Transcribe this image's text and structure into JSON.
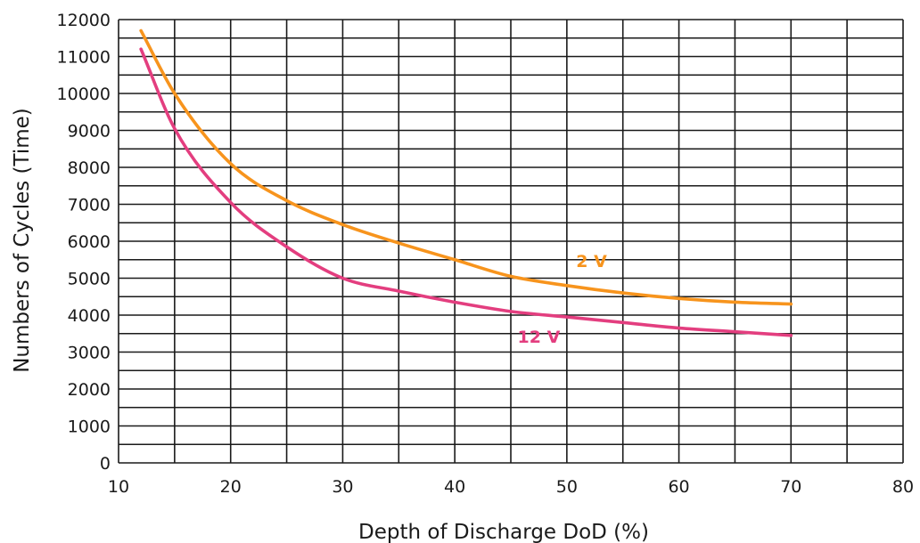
{
  "chart_data": {
    "type": "line",
    "title": "",
    "xlabel": "Depth of Discharge DoD (%)",
    "ylabel": "Numbers of Cycles (Time)",
    "xlim": [
      10,
      80
    ],
    "ylim": [
      0,
      12000
    ],
    "grid": true,
    "x_ticks": [
      10,
      20,
      30,
      40,
      50,
      60,
      70,
      80
    ],
    "y_ticks": [
      0,
      1000,
      2000,
      3000,
      4000,
      5000,
      6000,
      7000,
      8000,
      9000,
      10000,
      11000,
      12000
    ],
    "x_gridlines": [
      10,
      15,
      20,
      25,
      30,
      35,
      40,
      45,
      50,
      55,
      60,
      65,
      70,
      75,
      80
    ],
    "y_gridlines": [
      0,
      500,
      1000,
      1500,
      2000,
      2500,
      3000,
      3500,
      4000,
      4500,
      5000,
      5500,
      6000,
      6500,
      7000,
      7500,
      8000,
      8500,
      9000,
      9500,
      10000,
      10500,
      11000,
      11500,
      12000
    ],
    "series": [
      {
        "name": "2 V",
        "color": "#f7941d",
        "x": [
          12,
          15,
          20,
          25,
          30,
          35,
          40,
          45,
          50,
          55,
          60,
          65,
          70
        ],
        "y": [
          11700,
          10000,
          8100,
          7100,
          6450,
          5950,
          5500,
          5050,
          4800,
          4600,
          4450,
          4350,
          4300
        ]
      },
      {
        "name": "12 V",
        "color": "#e33e7f",
        "x": [
          12,
          15,
          20,
          25,
          30,
          35,
          40,
          45,
          50,
          55,
          60,
          65,
          70
        ],
        "y": [
          11200,
          9050,
          7050,
          5850,
          5000,
          4650,
          4350,
          4100,
          3950,
          3800,
          3650,
          3550,
          3450
        ]
      }
    ],
    "annotations": [
      {
        "text": "2 V",
        "series": 0,
        "x": 52.2,
        "y": 5300
      },
      {
        "text": "12 V",
        "series": 1,
        "x": 47.5,
        "y": 3250
      }
    ]
  }
}
